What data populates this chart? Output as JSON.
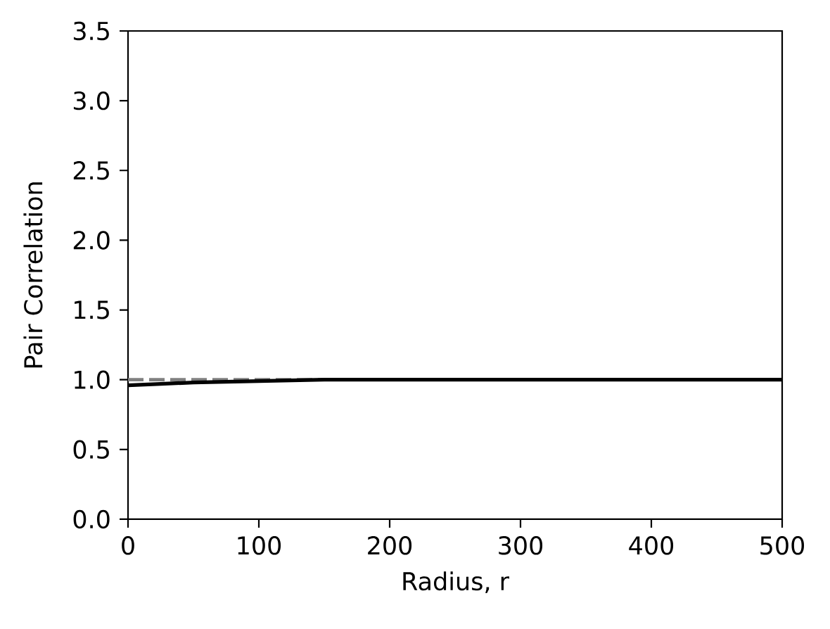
{
  "chart_data": {
    "type": "line",
    "xlabel": "Radius, r",
    "ylabel": "Pair Correlation",
    "x": [
      0,
      25,
      50,
      100,
      150,
      200,
      300,
      400,
      500
    ],
    "series": [
      {
        "color": "#000000",
        "values": [
          0.96,
          0.97,
          0.98,
          0.99,
          1.0,
          1.0,
          1.0,
          1.0,
          1.0
        ]
      }
    ],
    "xlim": [
      0,
      500
    ],
    "ylim": [
      0,
      3.5
    ],
    "xticks": [
      0,
      100,
      200,
      300,
      400,
      500
    ],
    "yticks": [
      {
        "value": 0,
        "label": "0.0"
      },
      0.5,
      {
        "value": 1,
        "label": "1.0"
      },
      1.5,
      {
        "value": 2,
        "label": "2.0"
      },
      2.5,
      {
        "value": 3,
        "label": "3.0"
      },
      3.5
    ],
    "ref_lines": [
      {
        "axis": "y",
        "value": 1,
        "color": "#808080",
        "line_style": "dashed"
      }
    ]
  }
}
